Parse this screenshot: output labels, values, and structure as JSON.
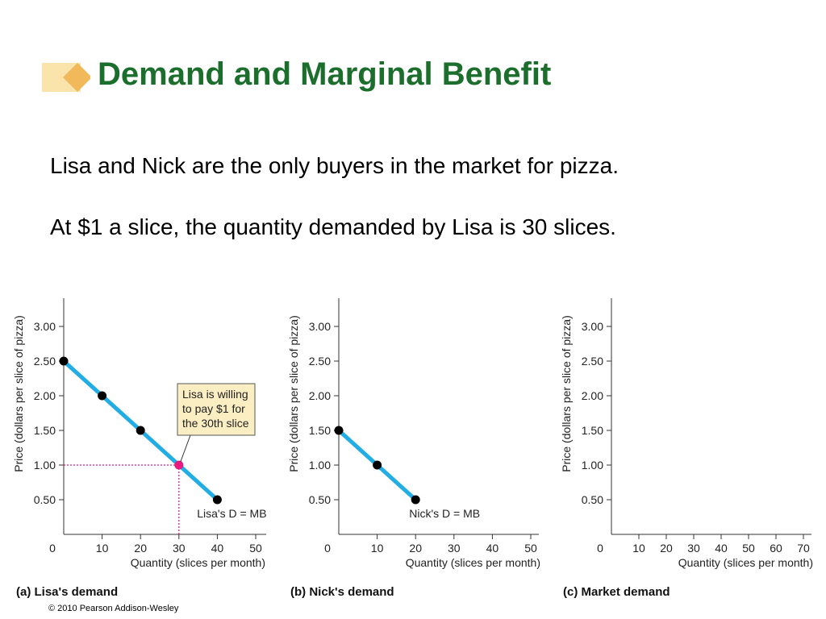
{
  "slide": {
    "title": "Demand and Marginal Benefit",
    "lines": [
      "Lisa and Nick are the only buyers in the market for pizza.",
      "At $1 a slice, the quantity demanded by Lisa is 30 slices."
    ],
    "copyright": "© 2010 Pearson Addison-Wesley"
  },
  "colors": {
    "title": "#1b6e2c",
    "demand_line": "#22aee4",
    "point": "#000000",
    "highlight": "#e8197f",
    "callout_fill": "#fbeec3"
  },
  "chart_data": [
    {
      "type": "line",
      "caption": "(a) Lisa's demand",
      "xlabel": "Quantity (slices per month)",
      "ylabel": "Price (dollars per slice of pizza)",
      "xlim": [
        0,
        50
      ],
      "ylim": [
        0,
        3.25
      ],
      "xticks": [
        "0",
        "10",
        "20",
        "30",
        "40",
        "50"
      ],
      "yticks": [
        "0.50",
        "1.00",
        "1.50",
        "2.00",
        "2.50",
        "3.00"
      ],
      "highlight_tick": {
        "x": "30",
        "y": "1.00"
      },
      "series": [
        {
          "name": "Lisa's D = MB",
          "x": [
            0,
            10,
            20,
            30,
            40
          ],
          "y": [
            2.5,
            2.0,
            1.5,
            1.0,
            0.5
          ]
        }
      ],
      "highlight_point": {
        "x": 30,
        "y": 1.0
      },
      "callout": [
        "Lisa is willing",
        "to pay $1 for",
        "the 30th slice"
      ]
    },
    {
      "type": "line",
      "caption": "(b) Nick's demand",
      "xlabel": "Quantity (slices per month)",
      "ylabel": "Price (dollars per slice of pizza)",
      "xlim": [
        0,
        50
      ],
      "ylim": [
        0,
        3.25
      ],
      "xticks": [
        "0",
        "10",
        "20",
        "30",
        "40",
        "50"
      ],
      "yticks": [
        "0.50",
        "1.00",
        "1.50",
        "2.00",
        "2.50",
        "3.00"
      ],
      "series": [
        {
          "name": "Nick's D = MB",
          "x": [
            0,
            10,
            20
          ],
          "y": [
            1.5,
            1.0,
            0.5
          ]
        }
      ]
    },
    {
      "type": "line",
      "caption": "(c) Market demand",
      "xlabel": "Quantity (slices per month)",
      "ylabel": "Price (dollars per slice of pizza)",
      "xlim": [
        0,
        70
      ],
      "ylim": [
        0,
        3.25
      ],
      "xticks": [
        "0",
        "10",
        "20",
        "30",
        "40",
        "50",
        "60",
        "70"
      ],
      "yticks": [
        "0.50",
        "1.00",
        "1.50",
        "2.00",
        "2.50",
        "3.00"
      ],
      "series": []
    }
  ]
}
